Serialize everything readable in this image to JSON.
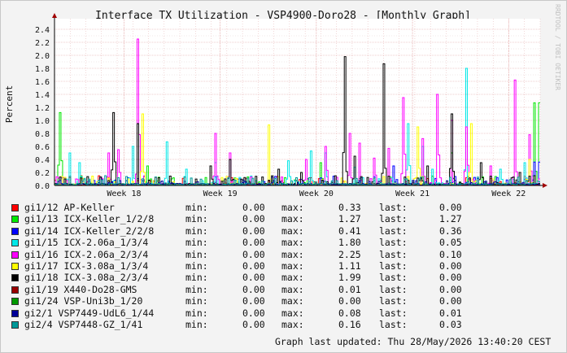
{
  "chart_data": {
    "type": "line",
    "title": "Interface TX Utilization - VSP4900-Doro28 - [Monthly Graph]",
    "ylabel": "Percent",
    "xlabel": "",
    "ylim": [
      0,
      2.5
    ],
    "y_ticks": [
      "0.0",
      "0.2",
      "0.4",
      "0.6",
      "0.8",
      "1.0",
      "1.2",
      "1.4",
      "1.6",
      "1.8",
      "2.0",
      "2.2",
      "2.4"
    ],
    "x_ticks": [
      "Week 18",
      "Week 19",
      "Week 20",
      "Week 21",
      "Week 22"
    ],
    "grid": true,
    "watermark": "RRDTOOL / TOBI OETIKER",
    "series": [
      {
        "name": "gi1/12 AP-Keller",
        "color": "#ff0000",
        "min": "0.00",
        "max": "0.33",
        "last": "0.00",
        "peaks": []
      },
      {
        "name": "gi1/13 ICX-Keller_1/2/8",
        "color": "#00e800",
        "min": "0.00",
        "max": "1.27",
        "last": "1.27",
        "peaks": [
          [
            0.01,
            1.12
          ],
          [
            0.19,
            0.3
          ],
          [
            0.55,
            0.35
          ],
          [
            0.82,
            0.5
          ],
          [
            0.99,
            1.27
          ]
        ]
      },
      {
        "name": "gi1/14 ICX-Keller_2/2/8",
        "color": "#0000ff",
        "min": "0.00",
        "max": "0.41",
        "last": "0.36",
        "peaks": [
          [
            0.7,
            0.3
          ],
          [
            0.99,
            0.36
          ]
        ]
      },
      {
        "name": "gi1/15 ICX-2.06a_1/3/4",
        "color": "#00e8e8",
        "min": "0.00",
        "max": "1.80",
        "last": "0.05",
        "peaks": [
          [
            0.03,
            0.5
          ],
          [
            0.05,
            0.35
          ],
          [
            0.16,
            0.6
          ],
          [
            0.23,
            0.67
          ],
          [
            0.27,
            0.25
          ],
          [
            0.33,
            0.35
          ],
          [
            0.48,
            0.38
          ],
          [
            0.53,
            0.53
          ],
          [
            0.56,
            0.5
          ],
          [
            0.62,
            0.28
          ],
          [
            0.73,
            0.95
          ],
          [
            0.76,
            0.6
          ],
          [
            0.78,
            0.25
          ],
          [
            0.85,
            1.8
          ],
          [
            0.92,
            0.25
          ],
          [
            0.97,
            0.35
          ]
        ]
      },
      {
        "name": "gi1/16 ICX-2.06a_2/3/4",
        "color": "#ff00ff",
        "min": "0.00",
        "max": "2.25",
        "last": "0.10",
        "peaks": [
          [
            0.11,
            0.5
          ],
          [
            0.13,
            0.55
          ],
          [
            0.17,
            2.25
          ],
          [
            0.33,
            0.8
          ],
          [
            0.36,
            0.5
          ],
          [
            0.52,
            0.4
          ],
          [
            0.56,
            0.6
          ],
          [
            0.61,
            0.8
          ],
          [
            0.63,
            0.65
          ],
          [
            0.66,
            0.42
          ],
          [
            0.69,
            0.57
          ],
          [
            0.72,
            1.35
          ],
          [
            0.76,
            0.72
          ],
          [
            0.79,
            1.4
          ],
          [
            0.82,
            1.0
          ],
          [
            0.85,
            0.9
          ],
          [
            0.9,
            0.3
          ],
          [
            0.95,
            1.62
          ],
          [
            0.98,
            0.78
          ]
        ]
      },
      {
        "name": "gi1/17 ICX-3.08a_1/3/4",
        "color": "#ffff00",
        "min": "0.00",
        "max": "1.11",
        "last": "0.00",
        "peaks": [
          [
            0.18,
            1.1
          ],
          [
            0.44,
            0.93
          ],
          [
            0.75,
            0.9
          ],
          [
            0.86,
            0.95
          ],
          [
            0.98,
            0.4
          ]
        ]
      },
      {
        "name": "gi1/18 ICX-3.08a_2/3/4",
        "color": "#000000",
        "min": "0.00",
        "max": "1.99",
        "last": "0.00",
        "peaks": [
          [
            0.02,
            0.1
          ],
          [
            0.12,
            1.12
          ],
          [
            0.17,
            0.95
          ],
          [
            0.32,
            0.3
          ],
          [
            0.36,
            0.4
          ],
          [
            0.46,
            0.25
          ],
          [
            0.51,
            0.2
          ],
          [
            0.6,
            1.98
          ],
          [
            0.62,
            0.45
          ],
          [
            0.68,
            1.87
          ],
          [
            0.77,
            0.3
          ],
          [
            0.82,
            1.1
          ],
          [
            0.88,
            0.35
          ],
          [
            0.96,
            0.2
          ],
          [
            0.99,
            0.15
          ]
        ]
      },
      {
        "name": "gi1/19 X440-Do28-GMS",
        "color": "#990000",
        "min": "0.00",
        "max": "0.01",
        "last": "0.00",
        "peaks": []
      },
      {
        "name": "gi1/24 VSP-Uni3b_1/20",
        "color": "#009900",
        "min": "0.00",
        "max": "0.00",
        "last": "0.00",
        "peaks": []
      },
      {
        "name": "gi2/1 VSP7449-UdL6_1/44",
        "color": "#000099",
        "min": "0.00",
        "max": "0.08",
        "last": "0.01",
        "peaks": []
      },
      {
        "name": "gi2/4 VSP7448-GZ_1/41",
        "color": "#009999",
        "min": "0.00",
        "max": "0.16",
        "last": "0.03",
        "peaks": []
      }
    ]
  },
  "legend_labels": {
    "min": "min:",
    "max": "max:",
    "last": "last:"
  },
  "footer": "Graph last updated: Thu 28/May/2026 13:40:20 CEST"
}
